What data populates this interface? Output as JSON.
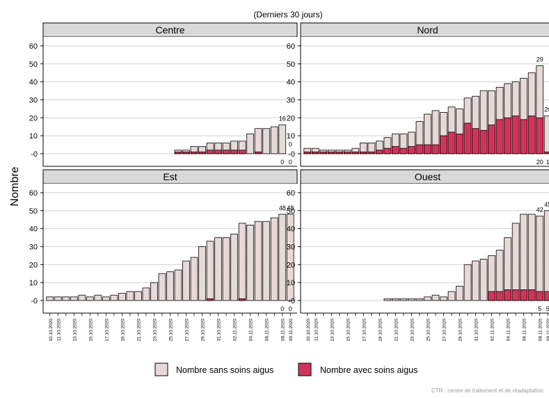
{
  "subtitle": "(Derniers 30 jours)",
  "y_axis_label": "Nombre",
  "footer_text": "CTR : centre de traitement et de réadaptation",
  "legend": {
    "sans_label": "Nombre sans soins aigus",
    "avec_label": "Nombre avec soins aigus"
  },
  "colors": {
    "sans": "#e6d9d7",
    "avec": "#d1345b",
    "strip": "#d9d9d9",
    "grid": "#d0d0d0"
  },
  "chart_data": {
    "type": "bar",
    "stacked": true,
    "y_ticks": [
      "-0",
      "10",
      "20",
      "30",
      "40",
      "50",
      "60"
    ],
    "ylim": [
      -7,
      65
    ],
    "grid": true,
    "legend_position": "bottom",
    "dates": [
      "10.10.2020",
      "11.10.2020",
      "12.10.2020",
      "13.10.2020",
      "14.10.2020",
      "15.10.2020",
      "16.10.2020",
      "17.10.2020",
      "18.10.2020",
      "19.10.2020",
      "20.10.2020",
      "21.10.2020",
      "22.10.2020",
      "23.10.2020",
      "24.10.2020",
      "25.10.2020",
      "26.10.2020",
      "27.10.2020",
      "28.10.2020",
      "29.10.2020",
      "30.10.2020",
      "31.10.2020",
      "01.11.2020",
      "02.11.2020",
      "03.11.2020",
      "04.11.2020",
      "05.11.2020",
      "06.11.2020",
      "07.11.2020",
      "08.11.2020",
      "09.11.2020"
    ],
    "x_tick_labels": [
      "10.10.2020",
      "11.10.2020",
      "13.10.2020",
      "15.10.2020",
      "17.10.2020",
      "19.10.2020",
      "21.10.2020",
      "23.10.2020",
      "25.10.2020",
      "27.10.2020",
      "29.10.2020",
      "31.10.2020",
      "02.11.2020",
      "04.11.2020",
      "06.11.2020",
      "08.11.2020",
      "09.11.2020"
    ],
    "panels": [
      {
        "name": "Centre",
        "total": [
          null,
          null,
          null,
          null,
          null,
          null,
          null,
          null,
          null,
          null,
          null,
          null,
          null,
          null,
          null,
          null,
          2,
          2,
          4,
          4,
          6,
          6,
          6,
          7,
          7,
          11,
          14,
          14,
          15,
          16,
          null
        ],
        "avec": [
          null,
          null,
          null,
          null,
          null,
          null,
          null,
          null,
          null,
          null,
          null,
          null,
          null,
          null,
          null,
          null,
          1,
          1,
          1,
          1,
          2,
          2,
          2,
          2,
          2,
          0,
          1,
          0,
          0,
          0,
          null
        ],
        "top_labels": [
          {
            "i": 29,
            "text": "16"
          }
        ],
        "mid_labels": [
          {
            "i": 30,
            "text": "0"
          }
        ],
        "bottom_labels": [
          {
            "i": 29,
            "text": "0"
          },
          {
            "i": 30,
            "text": "0"
          }
        ]
      },
      {
        "name": "Nord",
        "total": [
          3,
          3,
          2,
          2,
          2,
          2,
          3,
          6,
          6,
          7,
          9,
          11,
          11,
          12,
          18,
          22,
          24,
          23,
          26,
          25,
          31,
          32,
          35,
          35,
          37,
          39,
          40,
          42,
          45,
          49,
          21
        ],
        "avec": [
          1,
          1,
          1,
          1,
          1,
          1,
          1,
          1,
          1,
          2,
          3,
          4,
          3,
          4,
          5,
          5,
          5,
          10,
          12,
          11,
          17,
          14,
          13,
          16,
          19,
          20,
          21,
          19,
          21,
          20,
          1
        ],
        "top_labels": [
          {
            "i": 29,
            "text": "29"
          },
          {
            "i": 30,
            "text": "20"
          }
        ],
        "mid_labels": [],
        "bottom_labels": [
          {
            "i": 29,
            "text": "20"
          },
          {
            "i": 30,
            "text": "1"
          }
        ]
      },
      {
        "name": "Est",
        "total": [
          2,
          2,
          2,
          2,
          3,
          2,
          3,
          2,
          3,
          4,
          5,
          5,
          7,
          10,
          15,
          16,
          17,
          22,
          24,
          30,
          33,
          35,
          35,
          37,
          43,
          42,
          44,
          44,
          46,
          48,
          48
        ],
        "avec": [
          0,
          0,
          0,
          0,
          0,
          0,
          0,
          0,
          0,
          0,
          0,
          0,
          0,
          0,
          0,
          0,
          0,
          0,
          0,
          0,
          1,
          0,
          0,
          0,
          1,
          0,
          0,
          0,
          0,
          0,
          0
        ],
        "top_labels": [
          {
            "i": 29,
            "text": "48"
          },
          {
            "i": 30,
            "text": "48"
          }
        ],
        "mid_labels": [],
        "bottom_labels": [
          {
            "i": 29,
            "text": "0"
          },
          {
            "i": 30,
            "text": "0"
          }
        ]
      },
      {
        "name": "Ouest",
        "total": [
          null,
          null,
          null,
          null,
          null,
          null,
          null,
          null,
          null,
          null,
          1,
          1,
          1,
          1,
          1,
          2,
          3,
          2,
          5,
          8,
          20,
          22,
          23,
          25,
          28,
          35,
          43,
          48,
          48,
          47,
          50
        ],
        "avec": [
          null,
          null,
          null,
          null,
          null,
          null,
          null,
          null,
          null,
          null,
          0,
          0,
          0,
          0,
          0,
          0,
          0,
          0,
          0,
          0,
          0,
          0,
          0,
          5,
          5,
          6,
          6,
          6,
          6,
          5,
          5
        ],
        "top_labels": [
          {
            "i": 29,
            "text": "42"
          },
          {
            "i": 30,
            "text": "45"
          }
        ],
        "mid_labels": [],
        "bottom_labels": [
          {
            "i": 29,
            "text": "5"
          },
          {
            "i": 30,
            "text": "5"
          }
        ]
      }
    ]
  }
}
